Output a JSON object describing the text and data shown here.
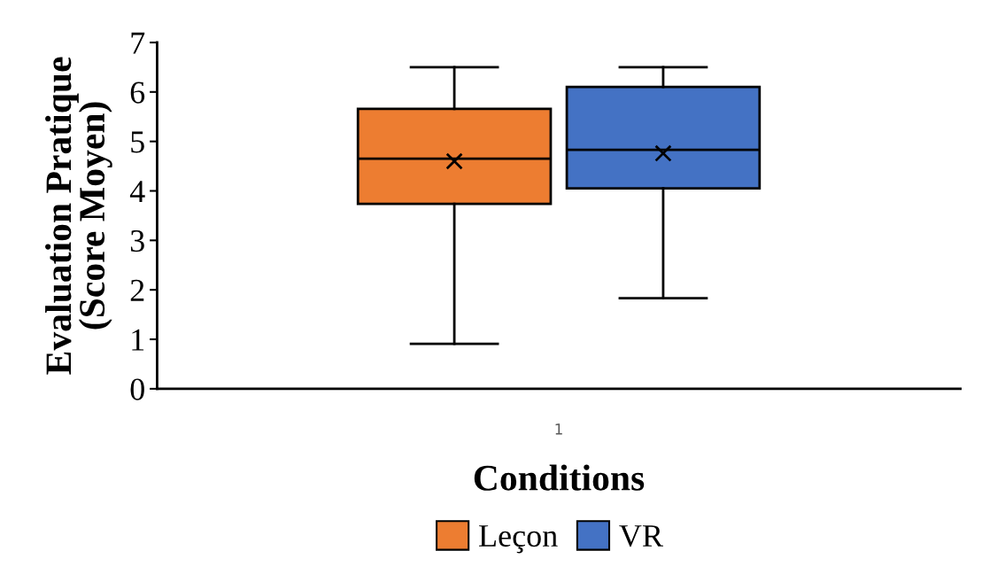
{
  "chart_data": {
    "type": "box",
    "xlabel": "Conditions",
    "ylabel": "Evaluation Pratique\n(Score Moyen)",
    "categories": [
      "1"
    ],
    "series": [
      {
        "name": "Leçon",
        "color": "#ed7d31",
        "boxes": [
          {
            "low": 0.91,
            "q1": 3.74,
            "median": 4.65,
            "q3": 5.66,
            "high": 6.5,
            "mean": 4.6
          }
        ]
      },
      {
        "name": "VR",
        "color": "#4472c4",
        "boxes": [
          {
            "low": 1.83,
            "q1": 4.05,
            "median": 4.83,
            "q3": 6.1,
            "high": 6.5,
            "mean": 4.76
          }
        ]
      }
    ],
    "ylim": [
      0,
      7
    ],
    "yticks": [
      0,
      1,
      2,
      3,
      4,
      5,
      6,
      7
    ],
    "grid": false,
    "legend": "bottom",
    "marker": "cross"
  }
}
